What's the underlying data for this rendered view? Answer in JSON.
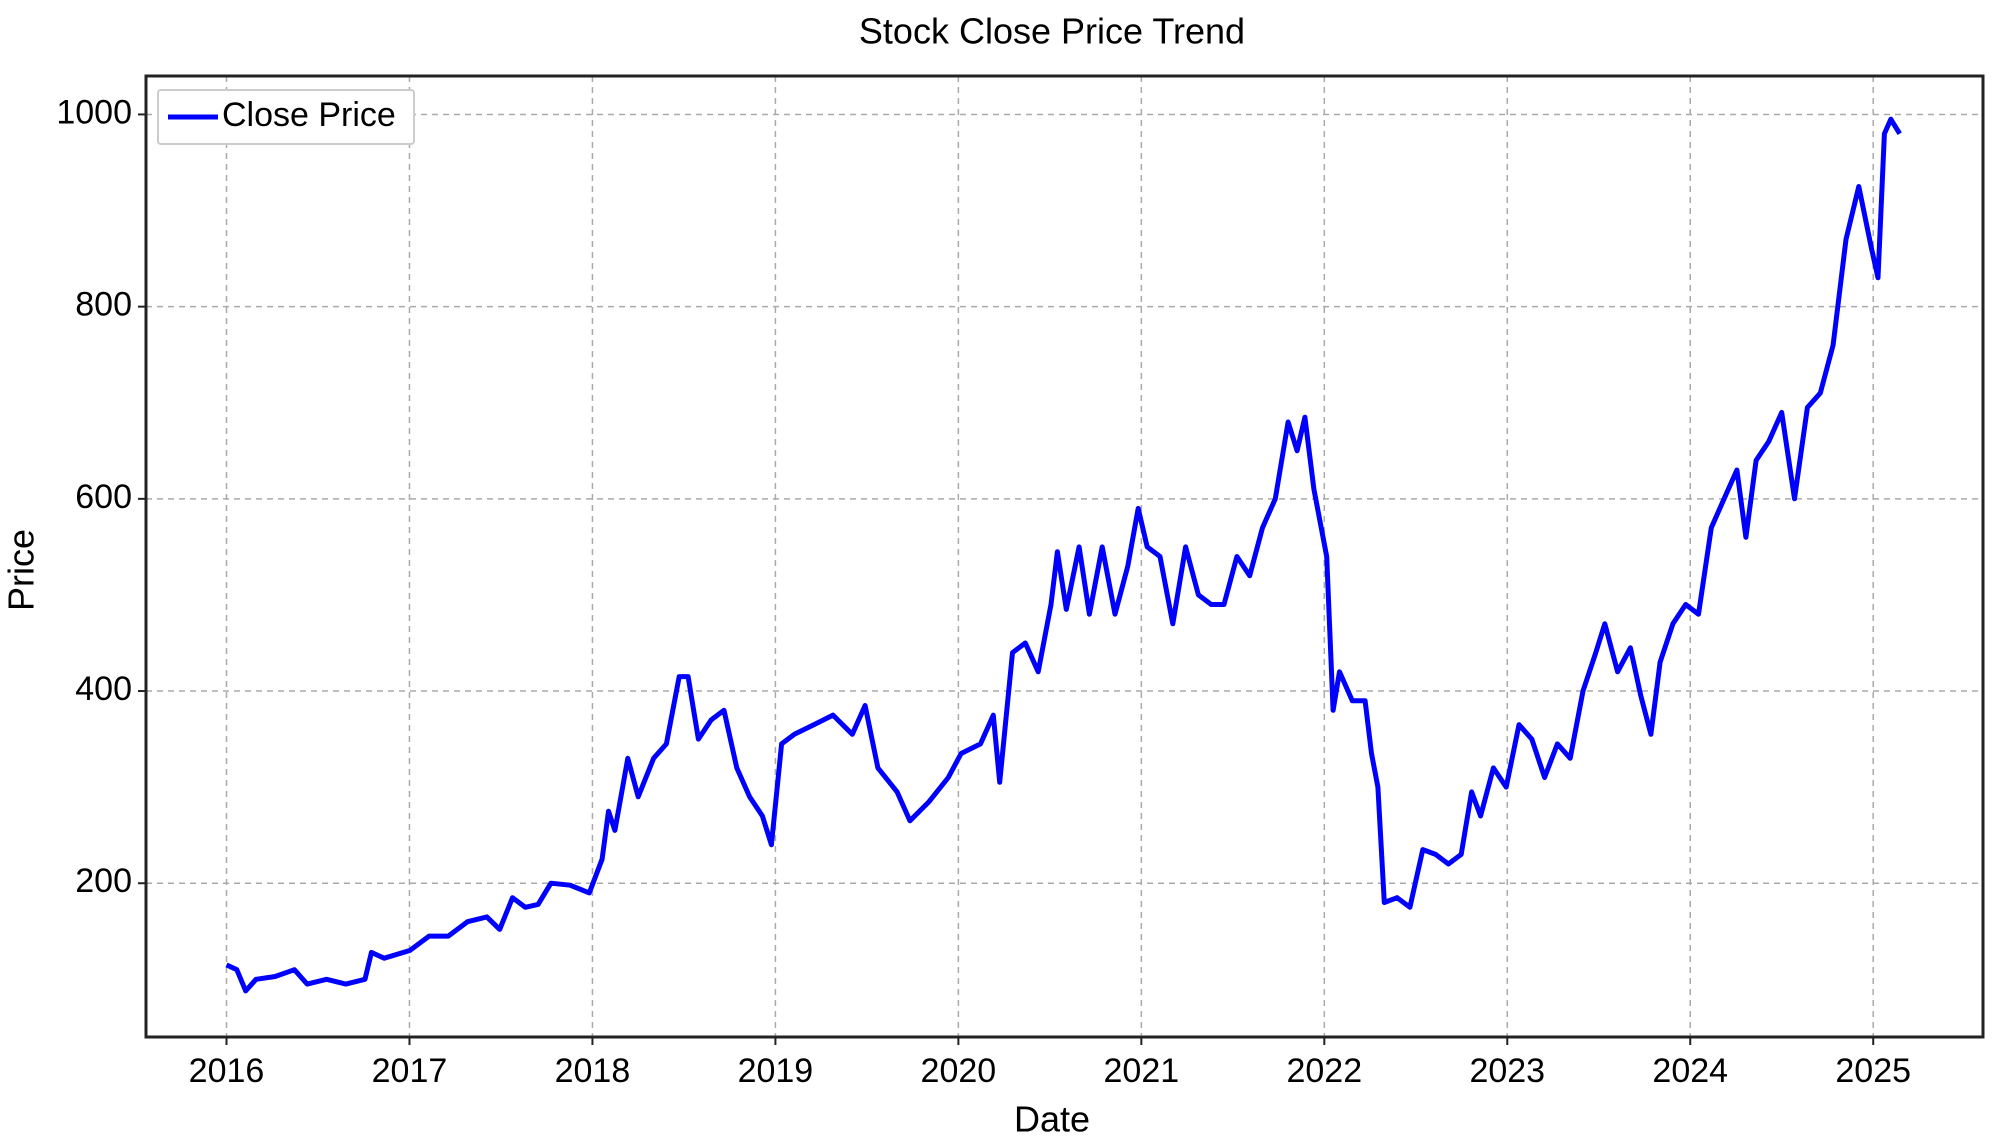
{
  "chart_data": {
    "type": "line",
    "title": "Stock Close Price Trend",
    "x_label": "Date",
    "y_label": "Price",
    "x": [
      2016.0,
      2016.056,
      2016.105,
      2016.161,
      2016.266,
      2016.371,
      2016.441,
      2016.547,
      2016.652,
      2016.757,
      2016.792,
      2016.862,
      2017.002,
      2017.107,
      2017.212,
      2017.317,
      2017.423,
      2017.493,
      2017.563,
      2017.633,
      2017.703,
      2017.773,
      2017.878,
      2017.983,
      2018.053,
      2018.088,
      2018.123,
      2018.193,
      2018.25,
      2018.334,
      2018.404,
      2018.474,
      2018.523,
      2018.579,
      2018.649,
      2018.719,
      2018.789,
      2018.859,
      2018.929,
      2018.978,
      2019.034,
      2019.104,
      2019.21,
      2019.315,
      2019.42,
      2019.49,
      2019.56,
      2019.665,
      2019.735,
      2019.84,
      2019.945,
      2020.015,
      2020.121,
      2020.191,
      2020.226,
      2020.296,
      2020.366,
      2020.436,
      2020.506,
      2020.541,
      2020.59,
      2020.66,
      2020.716,
      2020.786,
      2020.856,
      2020.926,
      2020.983,
      2021.032,
      2021.102,
      2021.172,
      2021.242,
      2021.312,
      2021.382,
      2021.452,
      2021.522,
      2021.592,
      2021.662,
      2021.732,
      2021.802,
      2021.851,
      2021.894,
      2021.943,
      2022.013,
      2022.048,
      2022.083,
      2022.153,
      2022.223,
      2022.258,
      2022.293,
      2022.328,
      2022.398,
      2022.468,
      2022.538,
      2022.608,
      2022.678,
      2022.748,
      2022.805,
      2022.854,
      2022.924,
      2022.994,
      2023.064,
      2023.134,
      2023.204,
      2023.274,
      2023.344,
      2023.414,
      2023.484,
      2023.533,
      2023.603,
      2023.673,
      2023.73,
      2023.785,
      2023.835,
      2023.905,
      2023.975,
      2024.045,
      2024.115,
      2024.185,
      2024.255,
      2024.304,
      2024.36,
      2024.43,
      2024.5,
      2024.57,
      2024.64,
      2024.711,
      2024.781,
      2024.851,
      2024.921,
      2024.991,
      2025.026,
      2025.061,
      2025.096,
      2025.145
    ],
    "series": [
      {
        "name": "Close Price",
        "color": "#0000ff",
        "values": [
          115,
          110,
          88,
          100,
          103,
          110,
          95,
          100,
          95,
          100,
          128,
          122,
          130,
          145,
          145,
          160,
          165,
          152,
          185,
          175,
          178,
          200,
          198,
          190,
          225,
          275,
          255,
          330,
          290,
          330,
          345,
          415,
          415,
          350,
          370,
          380,
          320,
          290,
          270,
          240,
          345,
          355,
          365,
          375,
          355,
          385,
          320,
          295,
          265,
          285,
          310,
          335,
          345,
          375,
          305,
          440,
          450,
          420,
          490,
          545,
          485,
          550,
          480,
          550,
          480,
          530,
          590,
          550,
          540,
          470,
          550,
          500,
          490,
          490,
          540,
          520,
          570,
          600,
          680,
          650,
          685,
          610,
          540,
          380,
          420,
          390,
          390,
          335,
          300,
          180,
          185,
          175,
          235,
          230,
          220,
          230,
          295,
          270,
          320,
          300,
          365,
          350,
          310,
          345,
          330,
          400,
          440,
          470,
          420,
          445,
          395,
          355,
          430,
          470,
          490,
          480,
          570,
          600,
          630,
          560,
          640,
          660,
          690,
          600,
          695,
          710,
          760,
          870,
          925,
          860,
          830,
          980,
          995,
          980
        ]
      }
    ],
    "xlim": [
      2015.56,
      2025.6
    ],
    "xticks": [
      2016,
      2017,
      2018,
      2019,
      2020,
      2021,
      2022,
      2023,
      2024,
      2025
    ],
    "ylim": [
      40,
      1040
    ],
    "yticks": [
      200,
      400,
      600,
      800,
      1000
    ],
    "grid": true,
    "legend": "upper left"
  }
}
